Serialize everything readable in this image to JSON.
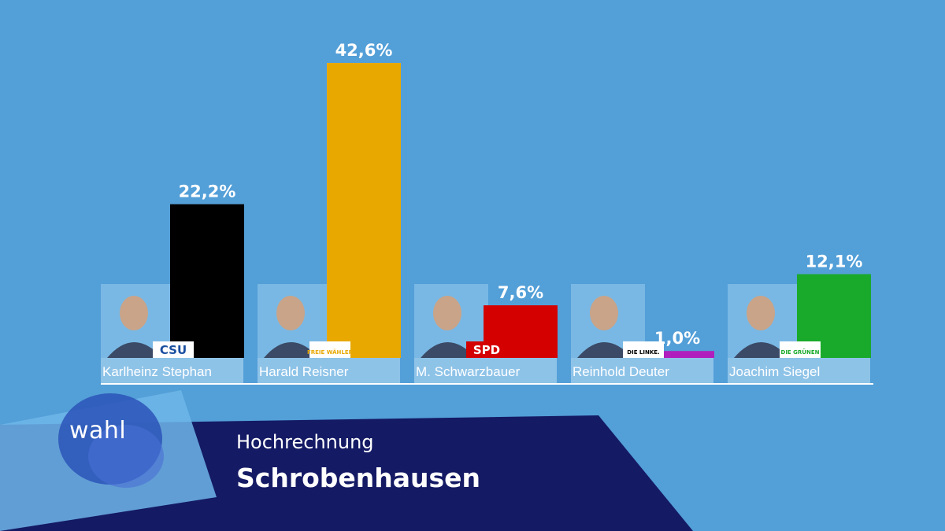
{
  "banner": {
    "logo": "wahl",
    "subtitle": "Hochrechnung",
    "title": "Schrobenhausen"
  },
  "chart_data": {
    "type": "bar",
    "categories": [
      "Karlheinz Stephan",
      "Harald Reisner",
      "M. Schwarzbauer",
      "Reinhold Deuter",
      "Joachim Siegel"
    ],
    "values": [
      22.2,
      42.6,
      7.6,
      1.0,
      12.1
    ],
    "value_labels": [
      "22,2%",
      "42,6%",
      "7,6%",
      "1,0%",
      "12,1%"
    ],
    "parties": [
      "CSU",
      "FREIE WÄHLER",
      "SPD",
      "DIE LINKE.",
      "DIE GRÜNEN"
    ],
    "colors": [
      "#000000",
      "#e8a800",
      "#d40000",
      "#b01fbd",
      "#1aaa2b"
    ],
    "ylim": [
      0,
      42.6
    ],
    "grid": false,
    "legend": "none"
  }
}
